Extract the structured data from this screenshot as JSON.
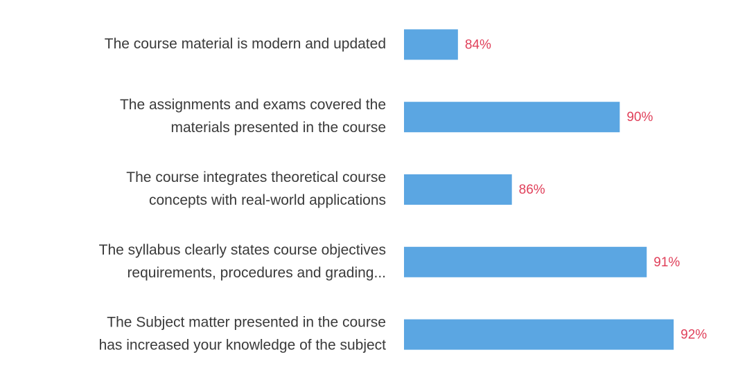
{
  "chart_data": {
    "type": "hbar",
    "categories": [
      [
        "The course material is modern and updated"
      ],
      [
        "The assignments and exams covered the",
        "materials presented in the course"
      ],
      [
        "The course integrates theoretical course",
        "concepts with real-world applications"
      ],
      [
        "The syllabus clearly states course objectives",
        "requirements, procedures and grading..."
      ],
      [
        "The Subject matter presented in the course",
        "has increased your knowledge of the subject"
      ]
    ],
    "values": [
      84,
      90,
      86,
      91,
      92
    ],
    "value_labels": [
      "84%",
      "90%",
      "86%",
      "91%",
      "92%"
    ],
    "color": "#5ba6e2",
    "label_color": "#e0405a",
    "xlim": [
      82,
      94
    ]
  }
}
